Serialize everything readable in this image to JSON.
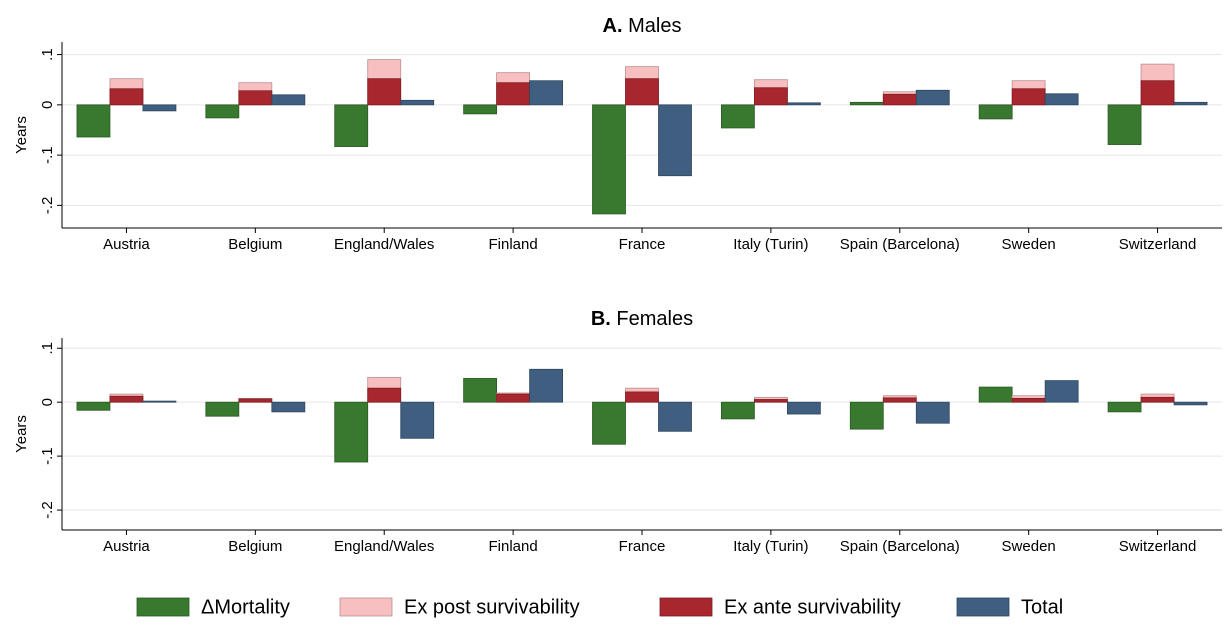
{
  "chart_data": [
    {
      "type": "bar",
      "panel": "A.",
      "title": "Males",
      "ylabel": "Years",
      "categories": [
        "Austria",
        "Belgium",
        "England/Wales",
        "Finland",
        "France",
        "Italy (Turin)",
        "Spain (Barcelona)",
        "Sweden",
        "Switzerland"
      ],
      "ylim": [
        -0.245,
        0.125
      ],
      "yticks": [
        {
          "value": -0.2,
          "label": "-.2"
        },
        {
          "value": -0.1,
          "label": "-.1"
        },
        0,
        {
          "value": 0.1,
          "label": ".1"
        }
      ],
      "grid": true,
      "series": [
        {
          "name": "ΔMortality",
          "color": "#38782f",
          "values": [
            -0.064,
            -0.026,
            -0.083,
            -0.018,
            -0.217,
            -0.046,
            0.005,
            -0.028,
            -0.079
          ]
        },
        {
          "name": "Ex post survivability",
          "color": "#f8bfc1",
          "values": [
            0.052,
            0.044,
            0.09,
            0.064,
            0.076,
            0.05,
            0.026,
            0.048,
            0.081
          ]
        },
        {
          "name": "Ex ante survivability",
          "color": "#a8272e",
          "values": [
            0.032,
            0.028,
            0.052,
            0.044,
            0.052,
            0.034,
            0.021,
            0.032,
            0.048
          ]
        },
        {
          "name": "Total",
          "color": "#3f5e80",
          "values": [
            -0.012,
            0.02,
            0.009,
            0.048,
            -0.141,
            0.004,
            0.029,
            0.022,
            0.005
          ]
        }
      ]
    },
    {
      "type": "bar",
      "panel": "B.",
      "title": "Females",
      "ylabel": "Years",
      "categories": [
        "Austria",
        "Belgium",
        "England/Wales",
        "Finland",
        "France",
        "Italy (Turin)",
        "Spain (Barcelona)",
        "Sweden",
        "Switzerland"
      ],
      "ylim": [
        -0.237,
        0.119
      ],
      "yticks": [
        {
          "value": -0.2,
          "label": "-.2"
        },
        {
          "value": -0.1,
          "label": "-.1"
        },
        0,
        {
          "value": 0.1,
          "label": ".1"
        }
      ],
      "grid": true,
      "series": [
        {
          "name": "ΔMortality",
          "color": "#38782f",
          "values": [
            -0.015,
            -0.026,
            -0.111,
            0.044,
            -0.078,
            -0.031,
            -0.05,
            0.028,
            -0.018
          ]
        },
        {
          "name": "Ex post survivability",
          "color": "#f8bfc1",
          "values": [
            0.015,
            0.007,
            0.046,
            0.017,
            0.026,
            0.009,
            0.012,
            0.012,
            0.015
          ]
        },
        {
          "name": "Ex ante survivability",
          "color": "#a8272e",
          "values": [
            0.011,
            0.006,
            0.026,
            0.015,
            0.019,
            0.005,
            0.008,
            0.007,
            0.009
          ]
        },
        {
          "name": "Total",
          "color": "#3f5e80",
          "values": [
            0.002,
            -0.018,
            -0.067,
            0.061,
            -0.054,
            -0.022,
            -0.039,
            0.04,
            -0.005
          ]
        }
      ]
    }
  ]
}
